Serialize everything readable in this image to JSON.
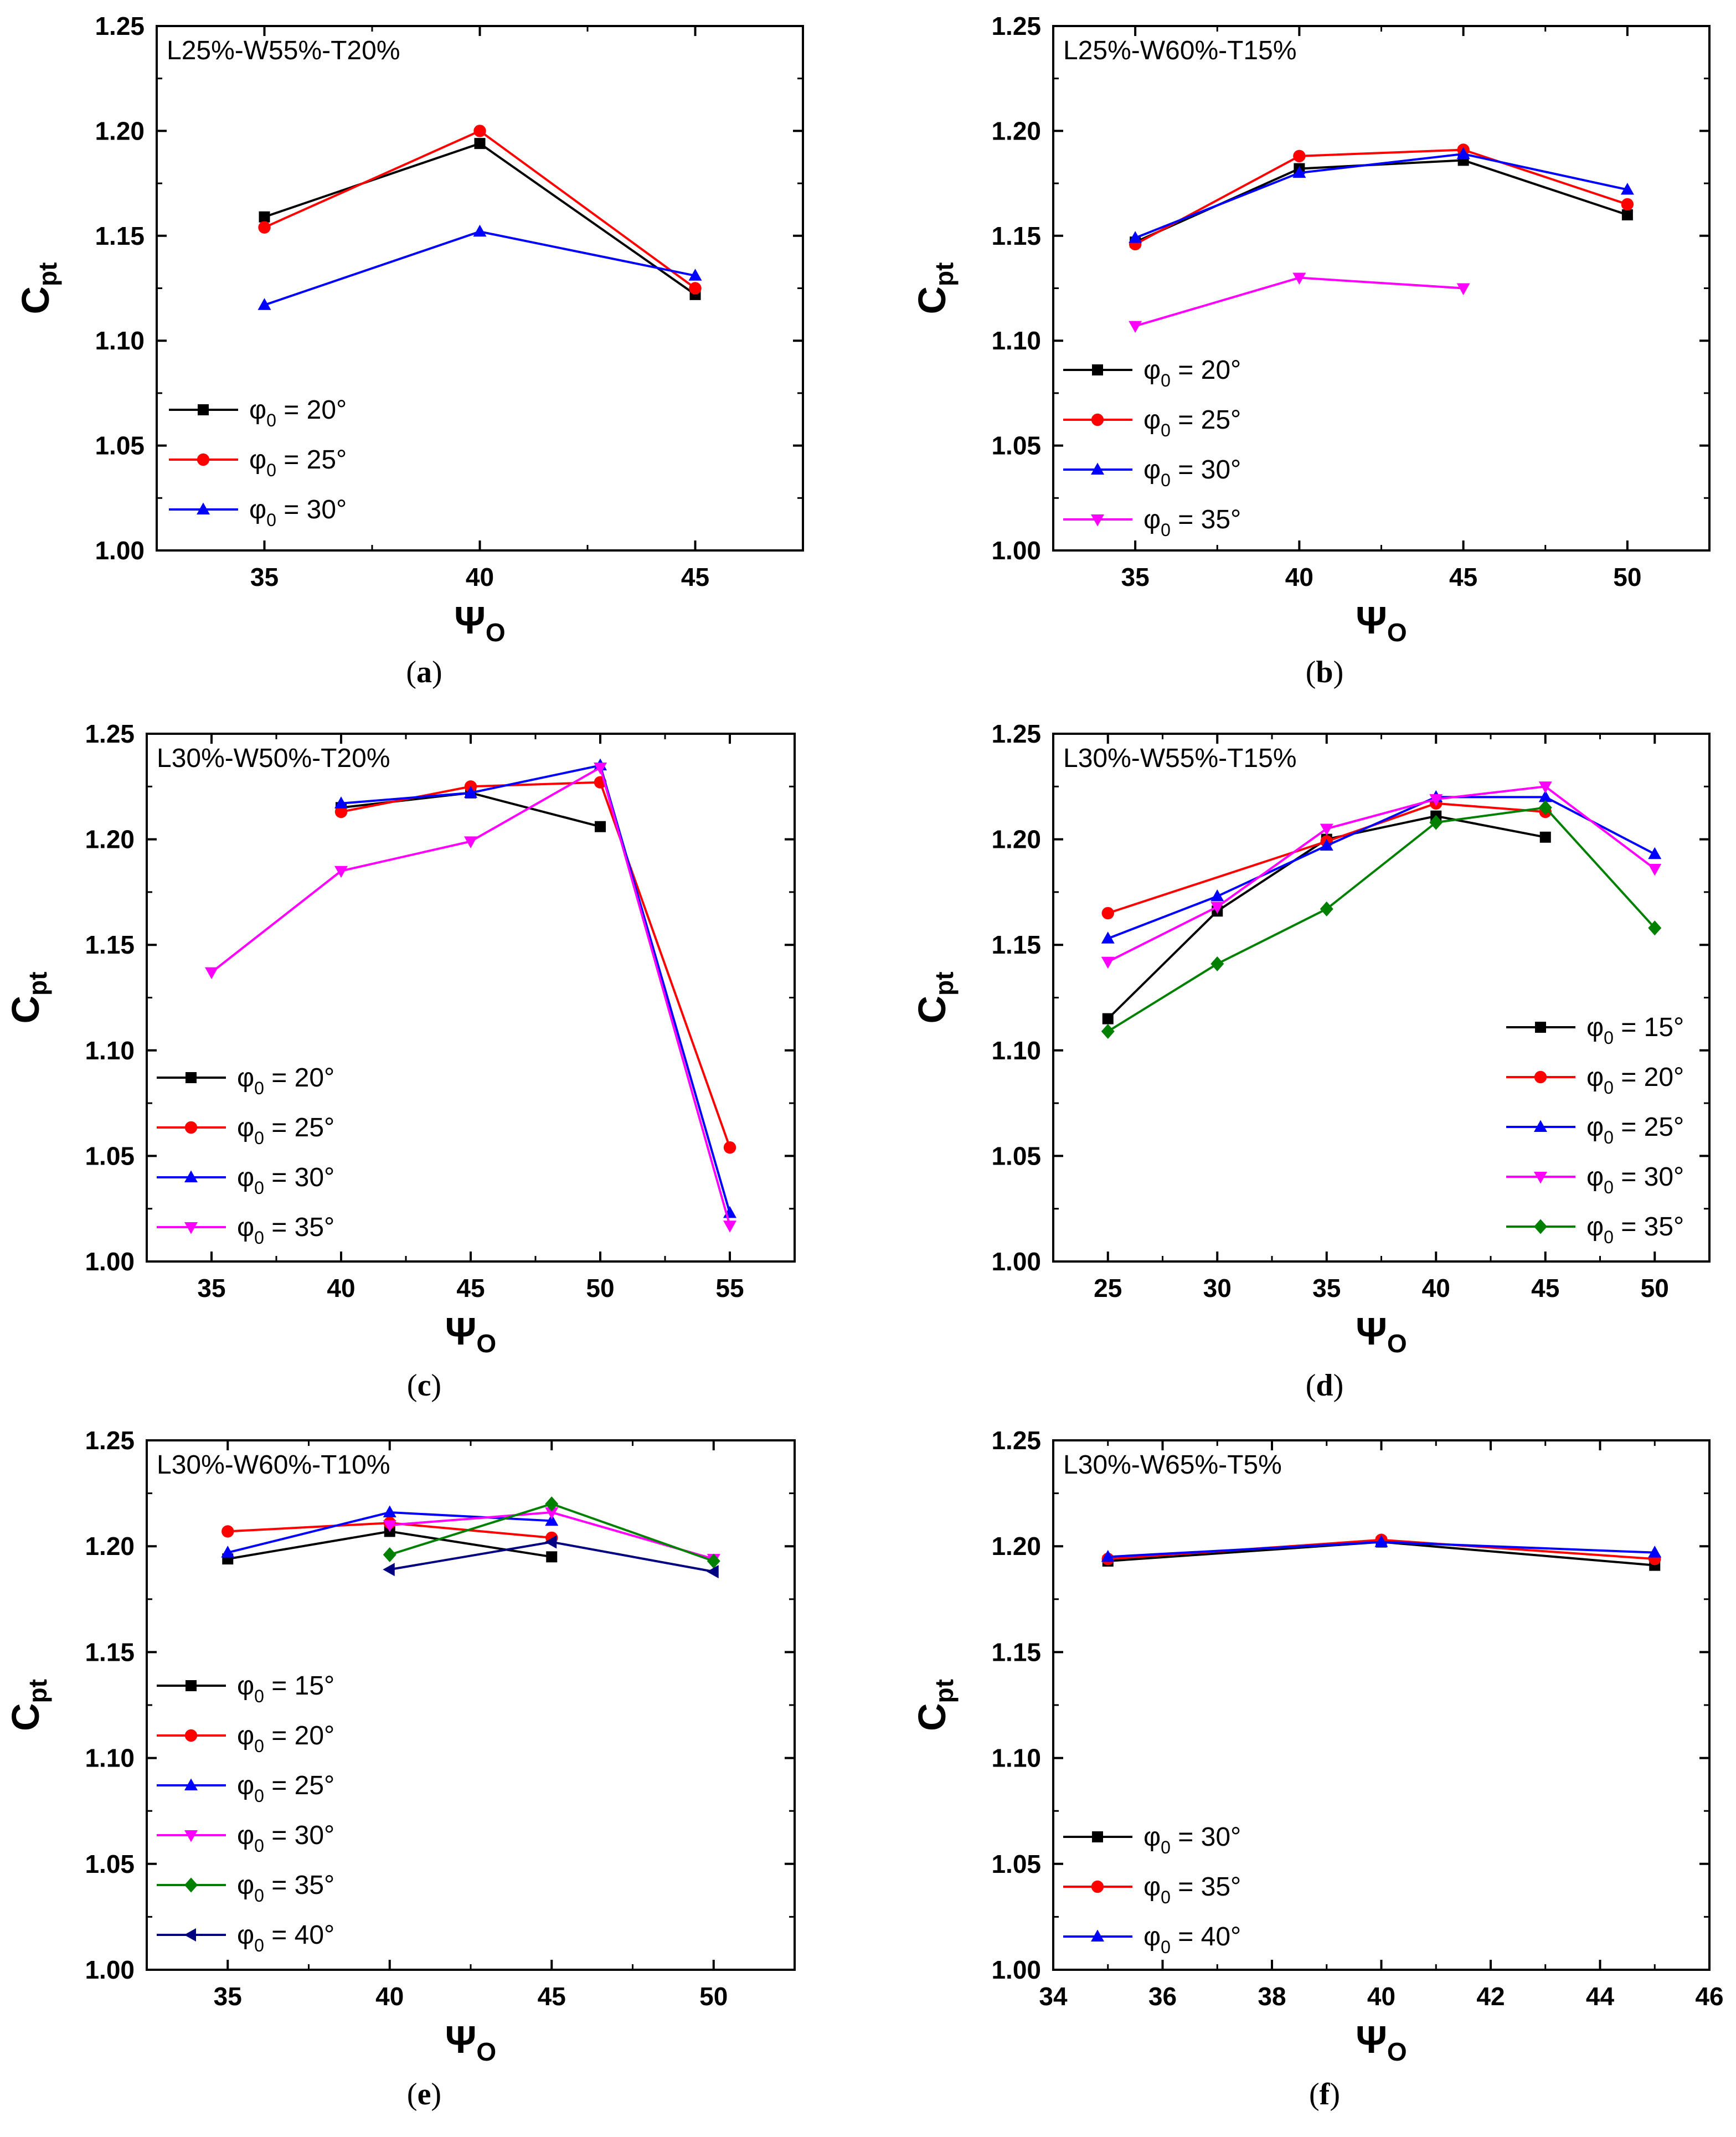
{
  "chart_data": [
    {
      "type": "line",
      "panel": "a",
      "caption": "(a)",
      "title": "L25%-W55%-T20%",
      "xlabel": "Ψ",
      "xlabel_sub": "O",
      "ylabel": "C",
      "ylabel_sub": "pt",
      "xlim": [
        32.5,
        47.5
      ],
      "xticks": [
        35,
        40,
        45
      ],
      "ylim": [
        1.0,
        1.25
      ],
      "yticks": [
        "1.00",
        "1.05",
        "1.10",
        "1.15",
        "1.20",
        "1.25"
      ],
      "legend_position": "bottom-left",
      "series": [
        {
          "name": "φ",
          "sub": "0",
          "label": " = 20°",
          "color": "#000000",
          "marker": "square",
          "points": [
            [
              35,
              1.159
            ],
            [
              40,
              1.194
            ],
            [
              45,
              1.122
            ]
          ]
        },
        {
          "name": "φ",
          "sub": "0",
          "label": " = 25°",
          "color": "#ff0000",
          "marker": "circle",
          "points": [
            [
              35,
              1.154
            ],
            [
              40,
              1.2
            ],
            [
              45,
              1.125
            ]
          ]
        },
        {
          "name": "φ",
          "sub": "0",
          "label": " = 30°",
          "color": "#0000ff",
          "marker": "triangle-up",
          "points": [
            [
              35,
              1.117
            ],
            [
              40,
              1.152
            ],
            [
              45,
              1.131
            ]
          ]
        }
      ]
    },
    {
      "type": "line",
      "panel": "b",
      "caption": "(b)",
      "title": "L25%-W60%-T15%",
      "xlabel": "Ψ",
      "xlabel_sub": "O",
      "ylabel": "C",
      "ylabel_sub": "pt",
      "xlim": [
        32.5,
        52.5
      ],
      "xticks": [
        35,
        40,
        45,
        50
      ],
      "ylim": [
        1.0,
        1.25
      ],
      "yticks": [
        "1.00",
        "1.05",
        "1.10",
        "1.15",
        "1.20",
        "1.25"
      ],
      "legend_position": "bottom-left",
      "series": [
        {
          "name": "φ",
          "sub": "0",
          "label": " = 20°",
          "color": "#000000",
          "marker": "square",
          "points": [
            [
              35,
              1.147
            ],
            [
              40,
              1.182
            ],
            [
              45,
              1.186
            ],
            [
              50,
              1.16
            ]
          ]
        },
        {
          "name": "φ",
          "sub": "0",
          "label": " = 25°",
          "color": "#ff0000",
          "marker": "circle",
          "points": [
            [
              35,
              1.146
            ],
            [
              40,
              1.188
            ],
            [
              45,
              1.191
            ],
            [
              50,
              1.165
            ]
          ]
        },
        {
          "name": "φ",
          "sub": "0",
          "label": " = 30°",
          "color": "#0000ff",
          "marker": "triangle-up",
          "points": [
            [
              35,
              1.149
            ],
            [
              40,
              1.18
            ],
            [
              45,
              1.189
            ],
            [
              50,
              1.172
            ]
          ]
        },
        {
          "name": "φ",
          "sub": "0",
          "label": " = 35°",
          "color": "#ff00ff",
          "marker": "triangle-down",
          "points": [
            [
              35,
              1.107
            ],
            [
              40,
              1.13
            ],
            [
              45,
              1.125
            ]
          ]
        }
      ]
    },
    {
      "type": "line",
      "panel": "c",
      "caption": "(c)",
      "title": "L30%-W50%-T20%",
      "xlabel": "Ψ",
      "xlabel_sub": "O",
      "ylabel": "C",
      "ylabel_sub": "pt",
      "xlim": [
        32.5,
        57.5
      ],
      "xticks": [
        35,
        40,
        45,
        50,
        55
      ],
      "ylim": [
        1.0,
        1.25
      ],
      "yticks": [
        "1.00",
        "1.05",
        "1.10",
        "1.15",
        "1.20",
        "1.25"
      ],
      "legend_position": "bottom-left",
      "series": [
        {
          "name": "φ",
          "sub": "0",
          "label": " = 20°",
          "color": "#000000",
          "marker": "square",
          "points": [
            [
              40,
              1.215
            ],
            [
              45,
              1.222
            ],
            [
              50,
              1.206
            ]
          ]
        },
        {
          "name": "φ",
          "sub": "0",
          "label": " = 25°",
          "color": "#ff0000",
          "marker": "circle",
          "points": [
            [
              40,
              1.213
            ],
            [
              45,
              1.225
            ],
            [
              50,
              1.227
            ],
            [
              55,
              1.054
            ]
          ]
        },
        {
          "name": "φ",
          "sub": "0",
          "label": " = 30°",
          "color": "#0000ff",
          "marker": "triangle-up",
          "points": [
            [
              40,
              1.217
            ],
            [
              45,
              1.222
            ],
            [
              50,
              1.235
            ],
            [
              55,
              1.023
            ]
          ]
        },
        {
          "name": "φ",
          "sub": "0",
          "label": " = 35°",
          "color": "#ff00ff",
          "marker": "triangle-down",
          "points": [
            [
              35,
              1.137
            ],
            [
              40,
              1.185
            ],
            [
              45,
              1.199
            ],
            [
              50,
              1.234
            ],
            [
              55,
              1.017
            ]
          ]
        }
      ]
    },
    {
      "type": "line",
      "panel": "d",
      "caption": "(d)",
      "title": "L30%-W55%-T15%",
      "xlabel": "Ψ",
      "xlabel_sub": "O",
      "ylabel": "C",
      "ylabel_sub": "pt",
      "xlim": [
        22.5,
        52.5
      ],
      "xticks": [
        25,
        30,
        35,
        40,
        45,
        50
      ],
      "ylim": [
        1.0,
        1.25
      ],
      "yticks": [
        "1.00",
        "1.05",
        "1.10",
        "1.15",
        "1.20",
        "1.25"
      ],
      "legend_position": "bottom-right",
      "series": [
        {
          "name": "φ",
          "sub": "0",
          "label": " = 15°",
          "color": "#000000",
          "marker": "square",
          "points": [
            [
              25,
              1.115
            ],
            [
              30,
              1.166
            ],
            [
              35,
              1.2
            ],
            [
              40,
              1.211
            ],
            [
              45,
              1.201
            ]
          ]
        },
        {
          "name": "φ",
          "sub": "0",
          "label": " = 20°",
          "color": "#ff0000",
          "marker": "circle",
          "points": [
            [
              25,
              1.165
            ],
            [
              35,
              1.199
            ],
            [
              40,
              1.217
            ],
            [
              45,
              1.213
            ]
          ]
        },
        {
          "name": "φ",
          "sub": "0",
          "label": " = 25°",
          "color": "#0000ff",
          "marker": "triangle-up",
          "points": [
            [
              25,
              1.153
            ],
            [
              30,
              1.173
            ],
            [
              35,
              1.197
            ],
            [
              40,
              1.22
            ],
            [
              45,
              1.22
            ],
            [
              50,
              1.193
            ]
          ]
        },
        {
          "name": "φ",
          "sub": "0",
          "label": " = 30°",
          "color": "#ff00ff",
          "marker": "triangle-down",
          "points": [
            [
              25,
              1.142
            ],
            [
              30,
              1.168
            ],
            [
              35,
              1.205
            ],
            [
              40,
              1.219
            ],
            [
              45,
              1.225
            ],
            [
              50,
              1.186
            ]
          ]
        },
        {
          "name": "φ",
          "sub": "0",
          "label": " = 35°",
          "color": "#008000",
          "marker": "diamond",
          "points": [
            [
              25,
              1.109
            ],
            [
              30,
              1.141
            ],
            [
              35,
              1.167
            ],
            [
              40,
              1.208
            ],
            [
              45,
              1.215
            ],
            [
              50,
              1.158
            ]
          ]
        }
      ]
    },
    {
      "type": "line",
      "panel": "e",
      "caption": "(e)",
      "title": "L30%-W60%-T10%",
      "xlabel": "Ψ",
      "xlabel_sub": "O",
      "ylabel": "C",
      "ylabel_sub": "pt",
      "xlim": [
        32.5,
        52.5
      ],
      "xticks": [
        35,
        40,
        45,
        50
      ],
      "ylim": [
        1.0,
        1.25
      ],
      "yticks": [
        "1.00",
        "1.05",
        "1.10",
        "1.15",
        "1.20",
        "1.25"
      ],
      "legend_position": "bottom-left",
      "series": [
        {
          "name": "φ",
          "sub": "0",
          "label": " = 15°",
          "color": "#000000",
          "marker": "square",
          "points": [
            [
              35,
              1.194
            ],
            [
              40,
              1.207
            ],
            [
              45,
              1.195
            ]
          ]
        },
        {
          "name": "φ",
          "sub": "0",
          "label": " = 20°",
          "color": "#ff0000",
          "marker": "circle",
          "points": [
            [
              35,
              1.207
            ],
            [
              40,
              1.211
            ],
            [
              45,
              1.204
            ]
          ]
        },
        {
          "name": "φ",
          "sub": "0",
          "label": " = 25°",
          "color": "#0000ff",
          "marker": "triangle-up",
          "points": [
            [
              35,
              1.197
            ],
            [
              40,
              1.216
            ],
            [
              45,
              1.212
            ]
          ]
        },
        {
          "name": "φ",
          "sub": "0",
          "label": " = 30°",
          "color": "#ff00ff",
          "marker": "triangle-down",
          "points": [
            [
              40,
              1.21
            ],
            [
              45,
              1.216
            ],
            [
              50,
              1.194
            ]
          ]
        },
        {
          "name": "φ",
          "sub": "0",
          "label": " = 35°",
          "color": "#008000",
          "marker": "diamond",
          "points": [
            [
              40,
              1.196
            ],
            [
              45,
              1.22
            ],
            [
              50,
              1.193
            ]
          ]
        },
        {
          "name": "φ",
          "sub": "0",
          "label": " = 40°",
          "color": "#000080",
          "marker": "triangle-left",
          "points": [
            [
              40,
              1.189
            ],
            [
              45,
              1.202
            ],
            [
              50,
              1.188
            ]
          ]
        }
      ]
    },
    {
      "type": "line",
      "panel": "f",
      "caption": "(f)",
      "title": "L30%-W65%-T5%",
      "xlabel": "Ψ",
      "xlabel_sub": "O",
      "ylabel": "C",
      "ylabel_sub": "pt",
      "xlim": [
        34,
        46
      ],
      "xticks": [
        34,
        36,
        38,
        40,
        42,
        44,
        46
      ],
      "ylim": [
        1.0,
        1.25
      ],
      "yticks": [
        "1.00",
        "1.05",
        "1.10",
        "1.15",
        "1.20",
        "1.25"
      ],
      "legend_position": "bottom-left",
      "series": [
        {
          "name": "φ",
          "sub": "0",
          "label": " = 30°",
          "color": "#000000",
          "marker": "square",
          "points": [
            [
              35,
              1.193
            ],
            [
              40,
              1.202
            ],
            [
              45,
              1.191
            ]
          ]
        },
        {
          "name": "φ",
          "sub": "0",
          "label": " = 35°",
          "color": "#ff0000",
          "marker": "circle",
          "points": [
            [
              35,
              1.194
            ],
            [
              40,
              1.203
            ],
            [
              45,
              1.194
            ]
          ]
        },
        {
          "name": "φ",
          "sub": "0",
          "label": " = 40°",
          "color": "#0000ff",
          "marker": "triangle-up",
          "points": [
            [
              35,
              1.195
            ],
            [
              40,
              1.202
            ],
            [
              45,
              1.197
            ]
          ]
        }
      ]
    }
  ]
}
